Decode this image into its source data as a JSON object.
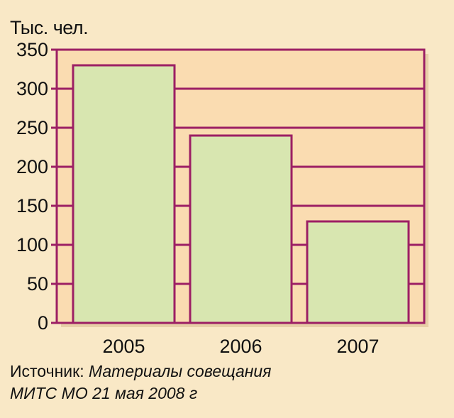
{
  "colors": {
    "background": "#f9e8c6",
    "plot_area": "#fadcb1",
    "frame": "#9c1f64",
    "bar_fill": "#d8e6b0"
  },
  "source": {
    "label": "Источник:",
    "line1": "Материалы совещания",
    "line2": "МИТС МО 21 мая 2008 г"
  },
  "chart_data": {
    "type": "bar",
    "ylabel": "Тыс. чел.",
    "categories": [
      "2005",
      "2006",
      "2007"
    ],
    "values": [
      330,
      240,
      130
    ],
    "ylim": [
      0,
      350
    ],
    "yticks": [
      0,
      50,
      100,
      150,
      200,
      250,
      300,
      350
    ],
    "grid": true
  }
}
